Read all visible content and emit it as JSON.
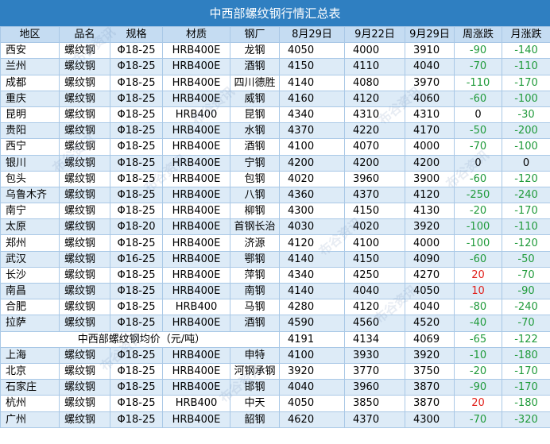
{
  "title": "中西部螺纹钢行情汇总表",
  "headers": [
    "地区",
    "品名",
    "规格",
    "材质",
    "钢厂",
    "8月29日",
    "9月22日",
    "9月29日",
    "周涨跌",
    "月涨跌"
  ],
  "rows_top": [
    {
      "region": "西安",
      "name": "螺纹钢",
      "spec": "Φ18-25",
      "material": "HRB400E",
      "mill": "龙钢",
      "p1": "4050",
      "p2": "4000",
      "p3": "3910",
      "week": "-90",
      "month": "-140"
    },
    {
      "region": "兰州",
      "name": "螺纹钢",
      "spec": "Φ18-25",
      "material": "HRB400E",
      "mill": "酒钢",
      "p1": "4150",
      "p2": "4110",
      "p3": "4040",
      "week": "-70",
      "month": "-110"
    },
    {
      "region": "成都",
      "name": "螺纹钢",
      "spec": "Φ18-25",
      "material": "HRB400E",
      "mill": "四川德胜",
      "p1": "4140",
      "p2": "4080",
      "p3": "3970",
      "week": "-110",
      "month": "-170"
    },
    {
      "region": "重庆",
      "name": "螺纹钢",
      "spec": "Φ18-25",
      "material": "HRB400E",
      "mill": "威钢",
      "p1": "4160",
      "p2": "4120",
      "p3": "4060",
      "week": "-60",
      "month": "-100"
    },
    {
      "region": "昆明",
      "name": "螺纹钢",
      "spec": "Φ18-25",
      "material": "HRB400",
      "mill": "昆钢",
      "p1": "4340",
      "p2": "4310",
      "p3": "4310",
      "week": "0",
      "month": "-30"
    },
    {
      "region": "贵阳",
      "name": "螺纹钢",
      "spec": "Φ18-25",
      "material": "HRB400E",
      "mill": "水钢",
      "p1": "4370",
      "p2": "4220",
      "p3": "4170",
      "week": "-50",
      "month": "-200"
    },
    {
      "region": "西宁",
      "name": "螺纹钢",
      "spec": "Φ18-25",
      "material": "HRB400E",
      "mill": "酒钢",
      "p1": "4100",
      "p2": "4070",
      "p3": "4000",
      "week": "-70",
      "month": "-100"
    },
    {
      "region": "银川",
      "name": "螺纹钢",
      "spec": "Φ18-25",
      "material": "HRB400E",
      "mill": "宁钢",
      "p1": "4200",
      "p2": "4200",
      "p3": "4200",
      "week": "0",
      "month": "0"
    },
    {
      "region": "包头",
      "name": "螺纹钢",
      "spec": "Φ18-25",
      "material": "HRB400E",
      "mill": "包钢",
      "p1": "4020",
      "p2": "3960",
      "p3": "3900",
      "week": "-60",
      "month": "-120"
    },
    {
      "region": "乌鲁木齐",
      "name": "螺纹钢",
      "spec": "Φ18-25",
      "material": "HRB400E",
      "mill": "八钢",
      "p1": "4360",
      "p2": "4370",
      "p3": "4120",
      "week": "-250",
      "month": "-240"
    },
    {
      "region": "南宁",
      "name": "螺纹钢",
      "spec": "Φ18-25",
      "material": "HRB400E",
      "mill": "柳钢",
      "p1": "4300",
      "p2": "4150",
      "p3": "4130",
      "week": "-20",
      "month": "-170"
    },
    {
      "region": "太原",
      "name": "螺纹钢",
      "spec": "Φ18-20",
      "material": "HRB400E",
      "mill": "首钢长治",
      "p1": "4030",
      "p2": "4020",
      "p3": "3920",
      "week": "-100",
      "month": "-110"
    },
    {
      "region": "郑州",
      "name": "螺纹钢",
      "spec": "Φ18-25",
      "material": "HRB400E",
      "mill": "济源",
      "p1": "4120",
      "p2": "4100",
      "p3": "4000",
      "week": "-100",
      "month": "-120"
    },
    {
      "region": "武汉",
      "name": "螺纹钢",
      "spec": "Φ16-25",
      "material": "HRB400E",
      "mill": "鄂钢",
      "p1": "4140",
      "p2": "4150",
      "p3": "4090",
      "week": "-60",
      "month": "-50"
    },
    {
      "region": "长沙",
      "name": "螺纹钢",
      "spec": "Φ18-25",
      "material": "HRB400E",
      "mill": "萍钢",
      "p1": "4340",
      "p2": "4250",
      "p3": "4270",
      "week": "20",
      "month": "-70"
    },
    {
      "region": "南昌",
      "name": "螺纹钢",
      "spec": "Φ18-25",
      "material": "HRB400E",
      "mill": "南钢",
      "p1": "4140",
      "p2": "4040",
      "p3": "4050",
      "week": "10",
      "month": "-90"
    },
    {
      "region": "合肥",
      "name": "螺纹钢",
      "spec": "Φ18-25",
      "material": "HRB400",
      "mill": "马钢",
      "p1": "4280",
      "p2": "4120",
      "p3": "4040",
      "week": "-80",
      "month": "-240"
    },
    {
      "region": "拉萨",
      "name": "螺纹钢",
      "spec": "Φ18-25",
      "material": "HRB400E",
      "mill": "酒钢",
      "p1": "4590",
      "p2": "4560",
      "p3": "4520",
      "week": "-40",
      "month": "-70"
    }
  ],
  "average": {
    "label": "中西部螺纹钢均价（元/吨）",
    "p1": "4191",
    "p2": "4134",
    "p3": "4069",
    "week": "-65",
    "month": "-122"
  },
  "rows_bottom": [
    {
      "region": "上海",
      "name": "螺纹钢",
      "spec": "Φ18-25",
      "material": "HRB400E",
      "mill": "申特",
      "p1": "4100",
      "p2": "3930",
      "p3": "3920",
      "week": "-10",
      "month": "-180"
    },
    {
      "region": "北京",
      "name": "螺纹钢",
      "spec": "Φ18-25",
      "material": "HRB400E",
      "mill": "河钢承钢",
      "p1": "3920",
      "p2": "3770",
      "p3": "3750",
      "week": "-20",
      "month": "-170"
    },
    {
      "region": "石家庄",
      "name": "螺纹钢",
      "spec": "Φ18-25",
      "material": "HRB400E",
      "mill": "邯钢",
      "p1": "4040",
      "p2": "3960",
      "p3": "3870",
      "week": "-90",
      "month": "-170"
    },
    {
      "region": "杭州",
      "name": "螺纹钢",
      "spec": "Φ18-25",
      "material": "HRB400",
      "mill": "中天",
      "p1": "4050",
      "p2": "3850",
      "p3": "3870",
      "week": "20",
      "month": "-180"
    },
    {
      "region": "广州",
      "name": "螺纹钢",
      "spec": "Φ18-25",
      "material": "HRB400E",
      "mill": "韶钢",
      "p1": "4620",
      "p2": "4370",
      "p3": "4300",
      "week": "-70",
      "month": "-320"
    }
  ],
  "watermark_text": "布谷资讯",
  "colors": {
    "header_bar": "#2f7fc1",
    "header_row": "#c5dcf2",
    "stripe": "#ddebf7",
    "border": "#a9c8e6",
    "up": "#e0201b",
    "down": "#1f9a3a"
  }
}
